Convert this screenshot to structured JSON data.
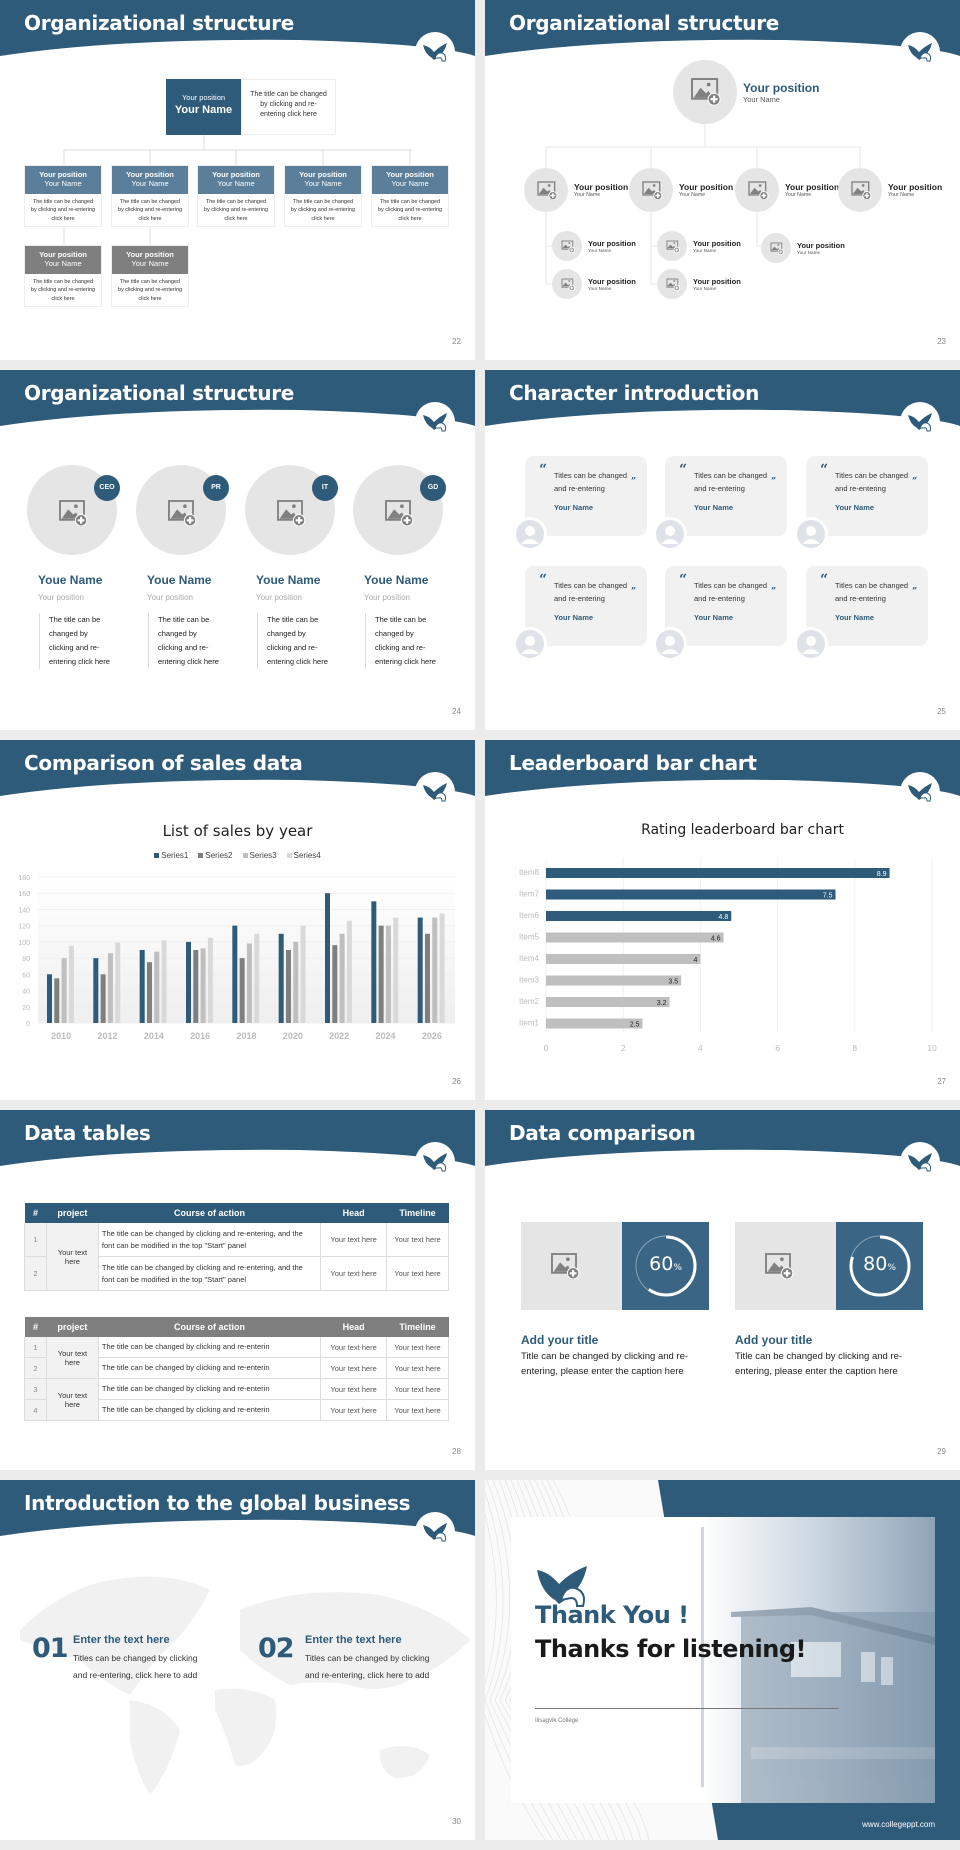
{
  "colors": {
    "primary": "#2e5b7a",
    "mid": "#5b7f9a",
    "gray": "#7f7f7f",
    "light": "#e6e5e5"
  },
  "slides": {
    "s22": {
      "title": "Organizational structure",
      "page": "22",
      "top": {
        "position": "Your position",
        "name": "Your Name",
        "desc": "The title can be changed by clicking and re-entering click here"
      },
      "children": [
        {
          "position": "Your position",
          "name": "Your Name",
          "desc": "The title can be changed by clicking and re-entering click here"
        },
        {
          "position": "Your position",
          "name": "Your Name",
          "desc": "The title can be changed by clicking and re-entering click here"
        },
        {
          "position": "Your position",
          "name": "Your Name",
          "desc": "The title can be changed by clicking and re-entering click here"
        },
        {
          "position": "Your position",
          "name": "Your Name",
          "desc": "The title can be changed by clicking and re-entering click here"
        },
        {
          "position": "Your position",
          "name": "Your Name",
          "desc": "The title can be changed by clicking and re-entering click here"
        }
      ],
      "grandchildren": [
        {
          "position": "Your position",
          "name": "Your Name",
          "desc": "The title can be changed by clicking and re-entering click here"
        },
        {
          "position": "Your position",
          "name": "Your Name",
          "desc": "The title can be changed by clicking and re-entering click here"
        }
      ]
    },
    "s23": {
      "title": "Organizational structure",
      "page": "23",
      "top": {
        "position": "Your position",
        "name": "Your Name"
      },
      "children": [
        {
          "position": "Your position",
          "name": "Your Name"
        },
        {
          "position": "Your position",
          "name": "Your Name"
        },
        {
          "position": "Your position",
          "name": "Your Name"
        },
        {
          "position": "Your position",
          "name": "Your Name"
        }
      ],
      "sub": [
        [
          {
            "position": "Your position",
            "name": "Your Name"
          },
          {
            "position": "Your position",
            "name": "Your Name"
          }
        ],
        [
          {
            "position": "Your position",
            "name": "Your Name"
          },
          {
            "position": "Your position",
            "name": "Your Name"
          }
        ],
        [
          {
            "position": "Your position",
            "name": "Your Name"
          }
        ]
      ]
    },
    "s24": {
      "title": "Organizational structure",
      "page": "24",
      "members": [
        {
          "badge": "CEO",
          "name": "Youe Name",
          "position": "Your position",
          "desc": "The title can be changed by clicking and re-entering click here"
        },
        {
          "badge": "PR",
          "name": "Youe Name",
          "position": "Your position",
          "desc": "The title can be changed by clicking and re-entering click here"
        },
        {
          "badge": "IT",
          "name": "Youe Name",
          "position": "Your position",
          "desc": "The title can be changed by clicking and re-entering click here"
        },
        {
          "badge": "GD",
          "name": "Youe Name",
          "position": "Your position",
          "desc": "The title can be changed by clicking and re-entering click here"
        }
      ]
    },
    "s25": {
      "title": "Character introduction",
      "page": "25",
      "quotes": [
        {
          "text": "Titles can be changed and re-entering",
          "name": "Your Name"
        },
        {
          "text": "Titles can be changed and re-entering",
          "name": "Your Name"
        },
        {
          "text": "Titles can be changed and re-entering",
          "name": "Your Name"
        },
        {
          "text": "Titles can be changed and re-entering",
          "name": "Your Name"
        },
        {
          "text": "Titles can be changed and re-entering",
          "name": "Your Name"
        },
        {
          "text": "Titles can be changed and re-entering",
          "name": "Your Name"
        }
      ]
    },
    "s26": {
      "title": "Comparison of sales data",
      "page": "26"
    },
    "s27": {
      "title": "Leaderboard bar chart",
      "page": "27"
    },
    "s28": {
      "title": "Data tables",
      "page": "28",
      "headers": [
        "#",
        "project",
        "Course of action",
        "Head",
        "Timeline"
      ],
      "table1": {
        "project": "Your text here",
        "rows": [
          {
            "n": "1",
            "action": "The title can be changed by clicking and re-entering, and the font can be modified in the top \"Start\" panel",
            "head": "Your text here",
            "timeline": "Your text here"
          },
          {
            "n": "2",
            "action": "The title can be changed by clicking and re-entering, and the font can be modified in the top \"Start\" panel",
            "head": "Your text here",
            "timeline": "Your text here"
          }
        ]
      },
      "table2": {
        "projects": [
          "Your text here",
          "Your text here"
        ],
        "rows": [
          {
            "n": "1",
            "action": "The title can be changed by clicking and re-enterin",
            "head": "Your text here",
            "timeline": "Your text here"
          },
          {
            "n": "2",
            "action": "The title can be changed by clicking and re-enterin",
            "head": "Your text here",
            "timeline": "Your text here"
          },
          {
            "n": "3",
            "action": "The title can be changed by clicking and re-enterin",
            "head": "Your text here",
            "timeline": "Your text here"
          },
          {
            "n": "4",
            "action": "The title can be changed by clicking and re-enterin",
            "head": "Your text here",
            "timeline": "Your text here"
          }
        ]
      }
    },
    "s29": {
      "title": "Data comparison",
      "page": "29",
      "items": [
        {
          "percent": 60,
          "value": "60",
          "unit": "%",
          "title": "Add your title",
          "desc": "Title can be changed by clicking and re-entering, please enter the caption here"
        },
        {
          "percent": 80,
          "value": "80",
          "unit": "%",
          "title": "Add your title",
          "desc": "Title can be changed by clicking and re-entering, please enter the caption here"
        }
      ]
    },
    "s30": {
      "title": "Introduction to the global business",
      "page": "30",
      "items": [
        {
          "num": "01",
          "title": "Enter the text here",
          "desc": "Titles can be changed by clicking and re-entering, click here to add"
        },
        {
          "num": "02",
          "title": "Enter the text here",
          "desc": "Titles can be changed by clicking and re-entering, click here to add"
        }
      ]
    },
    "s31": {
      "thanks": "Thank You !",
      "listening": "Thanks for listening!",
      "college": "Ilisagvik College",
      "url": "www.collegeppt.com"
    }
  },
  "chart_data": [
    {
      "type": "bar",
      "title": "List of sales by year",
      "categories": [
        "2010",
        "2012",
        "2014",
        "2016",
        "2018",
        "2020",
        "2022",
        "2024",
        "2026"
      ],
      "series": [
        {
          "name": "Series1",
          "color": "#2e5b7a",
          "values": [
            60,
            80,
            90,
            100,
            120,
            110,
            160,
            150,
            130
          ]
        },
        {
          "name": "Series2",
          "color": "#7f7f7f",
          "values": [
            55,
            60,
            75,
            90,
            80,
            90,
            96,
            120,
            110
          ]
        },
        {
          "name": "Series3",
          "color": "#bfbfbf",
          "values": [
            80,
            86,
            88,
            92,
            98,
            100,
            110,
            120,
            130
          ]
        },
        {
          "name": "Series4",
          "color": "#d9d9d9",
          "values": [
            95,
            99,
            102,
            105,
            110,
            120,
            126,
            130,
            135
          ]
        }
      ],
      "ylim": [
        0,
        180
      ],
      "yticks": [
        0,
        20,
        40,
        60,
        80,
        100,
        120,
        140,
        160,
        180
      ],
      "legend": "top",
      "grid": true
    },
    {
      "type": "bar",
      "orientation": "horizontal",
      "title": "Rating leaderboard bar chart",
      "categories": [
        "Item8",
        "Item7",
        "Item6",
        "Item5",
        "Item4",
        "Item3",
        "Item2",
        "Item1"
      ],
      "values": [
        8.9,
        7.5,
        4.8,
        4.6,
        4,
        3.5,
        3.2,
        2.5
      ],
      "labels": [
        "8.9",
        "7.5",
        "4.8",
        "4.6",
        "4",
        "3.5",
        "3.2",
        "2.5"
      ],
      "highlight": [
        "#2e5b7a",
        "#2e5b7a",
        "#2e5b7a",
        "#bfbfbf",
        "#bfbfbf",
        "#bfbfbf",
        "#bfbfbf",
        "#bfbfbf"
      ],
      "xlim": [
        0,
        10
      ],
      "xticks": [
        "0",
        "2",
        "4",
        "6",
        "8",
        "10"
      ],
      "grid": true
    }
  ]
}
